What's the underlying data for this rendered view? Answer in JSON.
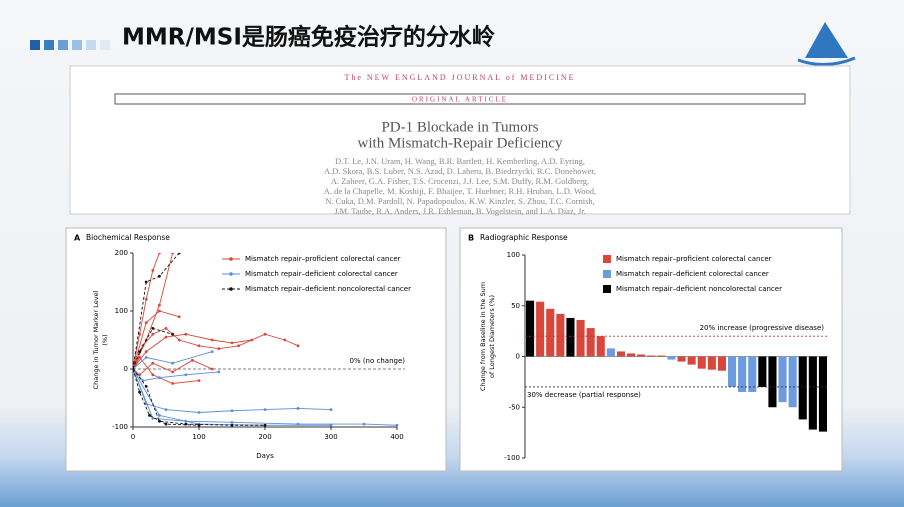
{
  "slide": {
    "title": "MMR/MSI是肠癌免疫治疗的分水岭"
  },
  "paper": {
    "journal": "The NEW ENGLAND JOURNAL of MEDICINE",
    "section": "ORIGINAL ARTICLE",
    "title": [
      "PD-1 Blockade in Tumors",
      "with Mismatch-Repair Deficiency"
    ],
    "authors": [
      "D.T. Le, J.N. Uram, H. Wang, B.R. Bartlett, H. Kemberling, A.D. Eyring,",
      "A.D. Skora, B.S. Luber, N.S. Azad, D. Laheru, B. Biedrzycki, R.C. Donehower,",
      "A. Zaheer, G.A. Fisher, T.S. Crocenzi, J.J. Lee, S.M. Duffy, R.M. Goldberg,",
      "A. de la Chapelle, M. Koshiji, F. Bhaijee, T. Huebner, R.H. Hruban, L.D. Wood,",
      "N. Cuka, D.M. Pardoll, N. Papadopoulos, K.W. Kinzler, S. Zhou, T.C. Cornish,",
      "J.M. Taube, R.A. Anders, J.R. Eshleman, B. Vogelstein, and L.A. Diaz, Jr."
    ]
  },
  "chart_data": [
    {
      "type": "line",
      "panel": "A",
      "title": "Biochemical Response",
      "y_label": [
        "Change in Tumor Marker Level",
        "(%)"
      ],
      "x_label": "Days",
      "xlim": [
        0,
        400
      ],
      "xticks": [
        0,
        100,
        200,
        300,
        400
      ],
      "ylim": [
        -100,
        200
      ],
      "yticks": [
        -100,
        0,
        100,
        200
      ],
      "reference_lines": [
        {
          "value": 0,
          "label": "0% (no change)"
        }
      ],
      "series": [
        {
          "name": "Mismatch repair–proficient colorectal cancer",
          "color": "#d9463b",
          "dash": false,
          "lines": [
            {
              "x": [
                0,
                10,
                20,
                30,
                40
              ],
              "y": [
                0,
                60,
                120,
                170,
                200
              ]
            },
            {
              "x": [
                0,
                20,
                40,
                60
              ],
              "y": [
                0,
                50,
                110,
                200
              ]
            },
            {
              "x": [
                0,
                15,
                30,
                50,
                70,
                100,
                130,
                160,
                200,
                230,
                250
              ],
              "y": [
                0,
                40,
                60,
                70,
                50,
                40,
                35,
                40,
                60,
                50,
                40
              ]
            },
            {
              "x": [
                0,
                20,
                50,
                80,
                120,
                150,
                180
              ],
              "y": [
                0,
                30,
                55,
                60,
                50,
                45,
                50
              ]
            },
            {
              "x": [
                0,
                10,
                30,
                60,
                90,
                120
              ],
              "y": [
                0,
                -10,
                10,
                -5,
                15,
                0
              ]
            },
            {
              "x": [
                0,
                20,
                40,
                70
              ],
              "y": [
                0,
                80,
                100,
                90
              ]
            },
            {
              "x": [
                0,
                10,
                30,
                60,
                100
              ],
              "y": [
                0,
                20,
                -10,
                -25,
                -20
              ]
            }
          ]
        },
        {
          "name": "Mismatch repair–deficient colorectal cancer",
          "color": "#5b8fd8",
          "dash": false,
          "lines": [
            {
              "x": [
                0,
                20,
                50,
                100,
                150,
                200,
                250,
                300
              ],
              "y": [
                0,
                -60,
                -70,
                -75,
                -72,
                -70,
                -68,
                -70
              ]
            },
            {
              "x": [
                0,
                30,
                80,
                150,
                250,
                350,
                400
              ],
              "y": [
                0,
                -85,
                -90,
                -92,
                -95,
                -95,
                -97
              ]
            },
            {
              "x": [
                0,
                20,
                60,
                120
              ],
              "y": [
                0,
                20,
                10,
                30
              ]
            },
            {
              "x": [
                0,
                15,
                40,
                80,
                130
              ],
              "y": [
                0,
                -20,
                -15,
                -10,
                -5
              ]
            },
            {
              "x": [
                0,
                40,
                100,
                200,
                300
              ],
              "y": [
                0,
                -80,
                -95,
                -97,
                -97
              ]
            }
          ]
        },
        {
          "name": "Mismatch repair–deficient noncolorectal cancer",
          "color": "#111111",
          "dash": true,
          "lines": [
            {
              "x": [
                0,
                20,
                40,
                70
              ],
              "y": [
                0,
                150,
                160,
                200
              ]
            },
            {
              "x": [
                0,
                10,
                25,
                50,
                100
              ],
              "y": [
                0,
                -40,
                -80,
                -95,
                -97
              ]
            },
            {
              "x": [
                0,
                20,
                40,
                80,
                150,
                200
              ],
              "y": [
                0,
                -30,
                -90,
                -95,
                -97,
                -97
              ]
            },
            {
              "x": [
                0,
                10,
                30,
                60
              ],
              "y": [
                0,
                30,
                70,
                60
              ]
            }
          ]
        }
      ]
    },
    {
      "type": "bar",
      "panel": "B",
      "title": "Radiographic Response",
      "y_label": [
        "Change from Baseline in the Sum",
        "of Longest Diameters (%)"
      ],
      "ylim": [
        -100,
        100
      ],
      "yticks": [
        -100,
        -50,
        0,
        50,
        100
      ],
      "reference_lines": [
        {
          "value": 20,
          "label": "20% increase (progressive disease)"
        },
        {
          "value": -30,
          "label": "30% decrease (partial response)"
        }
      ],
      "series": [
        {
          "name": "Mismatch repair–proficient colorectal cancer",
          "color": "#d9463b"
        },
        {
          "name": "Mismatch repair–deficient colorectal cancer",
          "color": "#6d9be0"
        },
        {
          "name": "Mismatch repair–deficient noncolorectal cancer",
          "color": "#000000"
        }
      ],
      "values": [
        55,
        54,
        47,
        42,
        38,
        36,
        28,
        20,
        8,
        5,
        3,
        2,
        1,
        1,
        -3,
        -5,
        -8,
        -12,
        -13,
        -14,
        -30,
        -35,
        -35,
        -30,
        -50,
        -45,
        -50,
        -62,
        -72,
        -74
      ],
      "groups": [
        2,
        0,
        0,
        0,
        2,
        0,
        0,
        0,
        1,
        0,
        0,
        0,
        0,
        0,
        1,
        0,
        0,
        0,
        0,
        0,
        1,
        1,
        1,
        2,
        2,
        1,
        1,
        2,
        2,
        2
      ]
    }
  ]
}
